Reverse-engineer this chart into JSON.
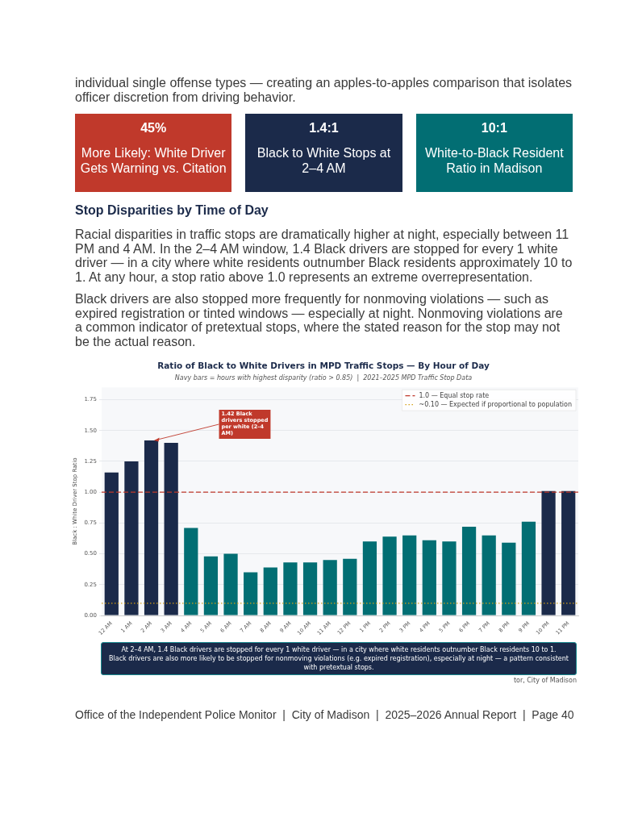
{
  "chart_data": [
    {
      "type": "other",
      "annotations": [
        "individual single offense types — creating an apples-to-apples comparison that isolates officer discretion from driving behavior."
      ]
    },
    {
      "type": "other",
      "categories": [
        "45%",
        "1.4:1",
        "10:1"
      ],
      "annotations": [
        "More Likely: White Driver Gets Warning vs. Citation",
        "Black to White Stops at 2–4 AM",
        "White-to-Black Resident Ratio in Madison"
      ],
      "colors": [
        "#c0392b",
        "#1b2a4a",
        "#026e73"
      ]
    },
    {
      "type": "other",
      "title": "Stop Disparities by Time of Day",
      "annotations": [
        "Racial disparities in traffic stops are dramatically higher at night, especially between 11 PM and 4 AM. In the 2–4 AM window, 1.4 Black drivers are stopped for every 1 white driver — in a city where white residents outnumber Black residents approximately 10 to 1. At any hour, a stop ratio above 1.0 represents an extreme overrepresentation.",
        "Black drivers are also stopped more frequently for nonmoving violations — such as expired registration or tinted windows — especially at night. Nonmoving violations are a common indicator of pretextual stops, where the stated reason for the stop may not be the actual reason."
      ]
    },
    {
      "type": "bar",
      "title": "Ratio of Black to White Drivers in MPD Traffic Stops — By Hour of Day",
      "subtitle": "Navy bars = hours with highest disparity (ratio > 0.85)  |  2021–2025 MPD Traffic Stop Data",
      "ylabel": "Black : White Driver Stop Ratio",
      "categories": [
        "12 AM",
        "1 AM",
        "2 AM",
        "3 AM",
        "4 AM",
        "5 AM",
        "6 AM",
        "7 AM",
        "8 AM",
        "9 AM",
        "10 AM",
        "11 AM",
        "12 PM",
        "1 PM",
        "2 PM",
        "3 PM",
        "4 PM",
        "5 PM",
        "6 PM",
        "7 PM",
        "8 PM",
        "9 PM",
        "10 PM",
        "11 PM"
      ],
      "values": [
        1.16,
        1.25,
        1.42,
        1.4,
        0.71,
        0.48,
        0.5,
        0.35,
        0.39,
        0.43,
        0.43,
        0.45,
        0.46,
        0.6,
        0.64,
        0.65,
        0.61,
        0.6,
        0.72,
        0.65,
        0.59,
        0.76,
        1.01,
        1.01
      ],
      "colors": [
        "#1b2a4a",
        "#1b2a4a",
        "#1b2a4a",
        "#1b2a4a",
        "#026e73",
        "#026e73",
        "#026e73",
        "#026e73",
        "#026e73",
        "#026e73",
        "#026e73",
        "#026e73",
        "#026e73",
        "#026e73",
        "#026e73",
        "#026e73",
        "#026e73",
        "#026e73",
        "#026e73",
        "#026e73",
        "#026e73",
        "#026e73",
        "#1b2a4a",
        "#1b2a4a"
      ],
      "ylim": [
        0,
        1.85
      ],
      "yticks": [
        {
          "value": 0,
          "label": "0.00"
        },
        {
          "value": 0.25,
          "label": "0.25"
        },
        {
          "value": 0.5,
          "label": "0.50"
        },
        {
          "value": 0.75,
          "label": "0.75"
        },
        {
          "value": 1,
          "label": "1.00"
        },
        {
          "value": 1.25,
          "label": "1.25"
        },
        {
          "value": 1.5,
          "label": "1.50"
        },
        {
          "value": 1.75,
          "label": "1.75"
        }
      ],
      "grid": "y",
      "legend": "top right",
      "ref_lines": [
        {
          "axis": "y",
          "value": 1.0,
          "label": "1.0 — Equal stop rate",
          "color": "#c0392b",
          "line_style": "dashed"
        },
        {
          "axis": "y",
          "value": 0.1,
          "label": "~0.10 — Expected if proportional to population",
          "color": "#d4a017",
          "line_style": "dotted"
        }
      ],
      "annotations": [
        {
          "text": "1.42 Black drivers stopped per white (2–4 AM)",
          "x": "2 AM",
          "y": 1.42
        },
        "At 2–4 AM, 1.4 Black drivers are stopped for every 1 white driver — in a city where white residents outnumber Black residents 10 to 1.",
        "Black drivers are also more likely to be stopped for nonmoving violations (e.g. expired registration), especially at night — a pattern consistent with pretextual stops.",
        "tor, City of Madison"
      ]
    },
    {
      "type": "other",
      "annotations": [
        "Office of the Independent Police Monitor  |  City of Madison  |  2025–2026 Annual Report  |  Page 40"
      ]
    }
  ]
}
